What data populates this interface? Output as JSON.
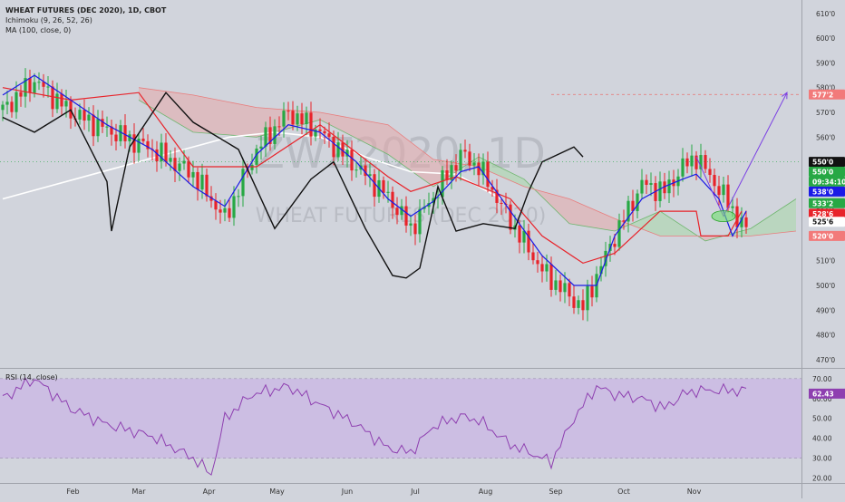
{
  "header": {
    "symbol_title": "WHEAT FUTURES (DEC 2020), 1D, CBOT",
    "indicator_1": "Ichimoku (9, 26, 52, 26)",
    "indicator_2": "MA (100, close, 0)",
    "rsi_label": "RSI (14, close)"
  },
  "watermark": {
    "ticker": "ZWZ2020, 1D",
    "name": "WHEAT FUTURES (DEC 2020)"
  },
  "colors": {
    "background": "#d1d4dc",
    "up_candle": "#27a844",
    "down_candle": "#e8232a",
    "tenkan": "#1a1ae6",
    "kijun": "#e8232a",
    "chikou": "#111111",
    "ma": "#ffffff",
    "cloud_bull": "#a8d7a8",
    "cloud_bear": "#e6a8aa",
    "rsi_line": "#8e3fb0",
    "rsi_band": "#c9b7e6",
    "projection": "#7b3fe4"
  },
  "chart_data": {
    "type": "candlestick",
    "symbol": "WHEAT FUTURES (DEC 2020)",
    "timeframe": "1D",
    "exchange": "CBOT",
    "x_axis": {
      "labels": [
        "Feb",
        "Mar",
        "Apr",
        "May",
        "Jun",
        "Jul",
        "Aug",
        "Sep",
        "Oct",
        "Nov"
      ]
    },
    "y_axis": {
      "ticks": [
        "610'0",
        "600'0",
        "590'0",
        "580'0",
        "570'0",
        "560'0",
        "550'0",
        "540'0",
        "530'0",
        "520'0",
        "510'0",
        "500'0",
        "490'0",
        "480'0",
        "470'0"
      ],
      "ylim": [
        467,
        614
      ]
    },
    "price_tags": [
      {
        "label": "577'2",
        "value": 577.25,
        "bg": "#f27a7a",
        "fg": "#ffffff"
      },
      {
        "label": "550'0",
        "value": 550.0,
        "bg": "#111111",
        "fg": "#ffffff"
      },
      {
        "label": "550'0",
        "value": 546.0,
        "bg": "#27a844",
        "fg": "#ffffff"
      },
      {
        "label": "09:34:10",
        "value": 542.0,
        "bg": "#27a844",
        "fg": "#ffffff"
      },
      {
        "label": "538'0",
        "value": 538.0,
        "bg": "#1a1ae6",
        "fg": "#ffffff"
      },
      {
        "label": "533'2",
        "value": 533.25,
        "bg": "#27a844",
        "fg": "#ffffff"
      },
      {
        "label": "528'6",
        "value": 529.0,
        "bg": "#e8232a",
        "fg": "#ffffff"
      },
      {
        "label": "525'6",
        "value": 525.75,
        "bg": "#ffffff",
        "fg": "#111111"
      },
      {
        "label": "520'0",
        "value": 520.0,
        "bg": "#f27a7a",
        "fg": "#ffffff"
      }
    ],
    "price_keypoints": [
      [
        0,
        571
      ],
      [
        14,
        583
      ],
      [
        30,
        570
      ],
      [
        46,
        563
      ],
      [
        66,
        555
      ],
      [
        84,
        545
      ],
      [
        98,
        527
      ],
      [
        112,
        555
      ],
      [
        126,
        570
      ],
      [
        140,
        562
      ],
      [
        156,
        548
      ],
      [
        170,
        536
      ],
      [
        180,
        523
      ],
      [
        190,
        536
      ],
      [
        202,
        553
      ],
      [
        210,
        548
      ],
      [
        224,
        526
      ],
      [
        238,
        506
      ],
      [
        252,
        494
      ],
      [
        256,
        491
      ],
      [
        262,
        504
      ],
      [
        270,
        520
      ],
      [
        282,
        541
      ],
      [
        292,
        538
      ],
      [
        300,
        548
      ],
      [
        306,
        552
      ],
      [
        316,
        539
      ],
      [
        328,
        522
      ]
    ],
    "tenkan": [
      [
        0,
        577
      ],
      [
        14,
        585
      ],
      [
        30,
        575
      ],
      [
        46,
        565
      ],
      [
        66,
        555
      ],
      [
        84,
        540
      ],
      [
        98,
        532
      ],
      [
        112,
        553
      ],
      [
        126,
        565
      ],
      [
        140,
        562
      ],
      [
        156,
        550
      ],
      [
        170,
        535
      ],
      [
        180,
        528
      ],
      [
        190,
        534
      ],
      [
        202,
        546
      ],
      [
        210,
        548
      ],
      [
        224,
        530
      ],
      [
        238,
        512
      ],
      [
        252,
        500
      ],
      [
        262,
        500
      ],
      [
        270,
        520
      ],
      [
        282,
        535
      ],
      [
        292,
        540
      ],
      [
        300,
        543
      ],
      [
        306,
        545
      ],
      [
        316,
        535
      ],
      [
        322,
        520
      ],
      [
        328,
        530
      ]
    ],
    "kijun": [
      [
        0,
        580
      ],
      [
        30,
        575
      ],
      [
        60,
        578
      ],
      [
        84,
        548
      ],
      [
        112,
        548
      ],
      [
        140,
        565
      ],
      [
        170,
        544
      ],
      [
        180,
        538
      ],
      [
        200,
        544
      ],
      [
        224,
        535
      ],
      [
        238,
        520
      ],
      [
        256,
        509
      ],
      [
        270,
        513
      ],
      [
        290,
        530
      ],
      [
        306,
        530
      ],
      [
        308,
        520
      ],
      [
        320,
        520
      ],
      [
        326,
        530
      ]
    ],
    "cloud": {
      "span_a": [
        [
          60,
          575
        ],
        [
          84,
          562
        ],
        [
          112,
          560
        ],
        [
          140,
          567
        ],
        [
          170,
          553
        ],
        [
          190,
          540
        ],
        [
          210,
          552
        ],
        [
          230,
          543
        ],
        [
          250,
          525
        ],
        [
          270,
          522
        ],
        [
          290,
          530
        ],
        [
          310,
          518
        ],
        [
          330,
          523
        ],
        [
          350,
          535
        ]
      ],
      "span_b": [
        [
          60,
          580
        ],
        [
          84,
          577
        ],
        [
          112,
          572
        ],
        [
          140,
          570
        ],
        [
          170,
          565
        ],
        [
          190,
          551
        ],
        [
          210,
          548
        ],
        [
          230,
          540
        ],
        [
          250,
          535
        ],
        [
          270,
          527
        ],
        [
          290,
          520
        ],
        [
          310,
          520
        ],
        [
          330,
          520
        ],
        [
          350,
          522
        ]
      ]
    },
    "chikou": [
      [
        0,
        568
      ],
      [
        14,
        562
      ],
      [
        30,
        571
      ],
      [
        46,
        542
      ],
      [
        48,
        522
      ],
      [
        56,
        556
      ],
      [
        72,
        578
      ],
      [
        84,
        566
      ],
      [
        104,
        555
      ],
      [
        118,
        527
      ],
      [
        120,
        523
      ],
      [
        136,
        543
      ],
      [
        146,
        550
      ],
      [
        160,
        523
      ],
      [
        172,
        504
      ],
      [
        178,
        503
      ],
      [
        184,
        507
      ],
      [
        192,
        540
      ],
      [
        200,
        522
      ],
      [
        212,
        525
      ],
      [
        226,
        523
      ],
      [
        232,
        538
      ],
      [
        238,
        550
      ],
      [
        252,
        556
      ],
      [
        256,
        552
      ]
    ],
    "ma100": [
      [
        0,
        535
      ],
      [
        40,
        545
      ],
      [
        80,
        555
      ],
      [
        100,
        560
      ],
      [
        120,
        562
      ],
      [
        140,
        560
      ],
      [
        160,
        552
      ],
      [
        180,
        546
      ],
      [
        200,
        545
      ],
      [
        220,
        535
      ]
    ],
    "projection": {
      "points": [
        [
          306,
          552
        ],
        [
          318,
          528
        ],
        [
          346,
          578
        ]
      ],
      "target_label": "577'2",
      "target_value": 577.25
    },
    "rsi": {
      "title": "RSI (14, close)",
      "current": "62.43",
      "y_ticks": [
        "70.00",
        "60.00",
        "50.00",
        "40.00",
        "30.00",
        "20.00"
      ],
      "ylim": [
        18,
        74
      ],
      "upper": 70,
      "lower": 30,
      "keypoints": [
        [
          0,
          60
        ],
        [
          14,
          70
        ],
        [
          30,
          55
        ],
        [
          46,
          47
        ],
        [
          66,
          41
        ],
        [
          84,
          30
        ],
        [
          92,
          22
        ],
        [
          98,
          50
        ],
        [
          110,
          62
        ],
        [
          126,
          66
        ],
        [
          140,
          57
        ],
        [
          156,
          47
        ],
        [
          170,
          35
        ],
        [
          180,
          33
        ],
        [
          190,
          46
        ],
        [
          202,
          51
        ],
        [
          210,
          49
        ],
        [
          224,
          37
        ],
        [
          236,
          31
        ],
        [
          242,
          28
        ],
        [
          252,
          50
        ],
        [
          262,
          66
        ],
        [
          270,
          62
        ],
        [
          282,
          60
        ],
        [
          292,
          55
        ],
        [
          300,
          62
        ],
        [
          306,
          64
        ]
      ]
    }
  }
}
